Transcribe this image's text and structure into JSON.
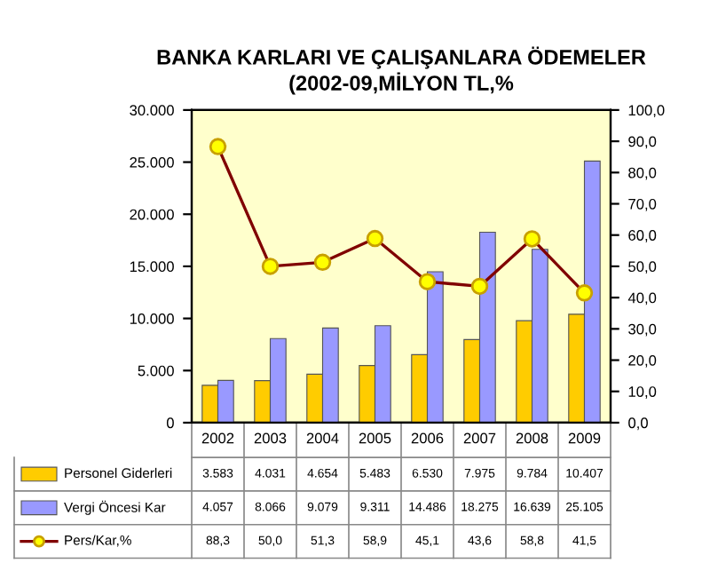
{
  "chart_data": {
    "type": "bar",
    "title": "BANKA KARLARI VE ÇALIŞANLARA ÖDEMELER\n(2002-09,MİLYON TL,%",
    "categories": [
      "2002",
      "2003",
      "2004",
      "2005",
      "2006",
      "2007",
      "2008",
      "2009"
    ],
    "series": [
      {
        "name": "Personel Giderleri",
        "color": "#ffcc00",
        "values": [
          3583,
          4031,
          4654,
          5483,
          6530,
          7975,
          9784,
          10407
        ],
        "value_labels": [
          "3.583",
          "4.031",
          "4.654",
          "5.483",
          "6.530",
          "7.975",
          "9.784",
          "10.407"
        ]
      },
      {
        "name": "Vergi Öncesi Kar",
        "color": "#9999ff",
        "values": [
          4057,
          8066,
          9079,
          9311,
          14486,
          18275,
          16639,
          25105
        ],
        "value_labels": [
          "4.057",
          "8.066",
          "9.079",
          "9.311",
          "14.486",
          "18.275",
          "16.639",
          "25.105"
        ]
      },
      {
        "name": "Pers/Kar,%",
        "type": "line",
        "axis": "y2",
        "color": "#800000",
        "marker": "circle",
        "values": [
          88.3,
          50.0,
          51.3,
          58.9,
          45.1,
          43.6,
          58.8,
          41.5
        ],
        "value_labels": [
          "88,3",
          "50,0",
          "51,3",
          "58,9",
          "45,1",
          "43,6",
          "58,8",
          "41,5"
        ]
      }
    ],
    "ylim": [
      0,
      30000
    ],
    "yticks": [
      {
        "value": 0,
        "label": "0"
      },
      {
        "value": 5000,
        "label": "5.000"
      },
      {
        "value": 10000,
        "label": "10.000"
      },
      {
        "value": 15000,
        "label": "15.000"
      },
      {
        "value": 20000,
        "label": "20.000"
      },
      {
        "value": 25000,
        "label": "25.000"
      },
      {
        "value": 30000,
        "label": "30.000"
      }
    ],
    "y2lim": [
      0,
      100
    ],
    "y2ticks": [
      {
        "value": 0,
        "label": "0,0"
      },
      {
        "value": 10,
        "label": "10,0"
      },
      {
        "value": 20,
        "label": "20,0"
      },
      {
        "value": 30,
        "label": "30,0"
      },
      {
        "value": 40,
        "label": "40,0"
      },
      {
        "value": 50,
        "label": "50,0"
      },
      {
        "value": 60,
        "label": "60,0"
      },
      {
        "value": 70,
        "label": "70,0"
      },
      {
        "value": 80,
        "label": "80,0"
      },
      {
        "value": 90,
        "label": "90,0"
      },
      {
        "value": 100,
        "label": "100,0"
      }
    ],
    "grid": false,
    "legend": "bottom left"
  }
}
